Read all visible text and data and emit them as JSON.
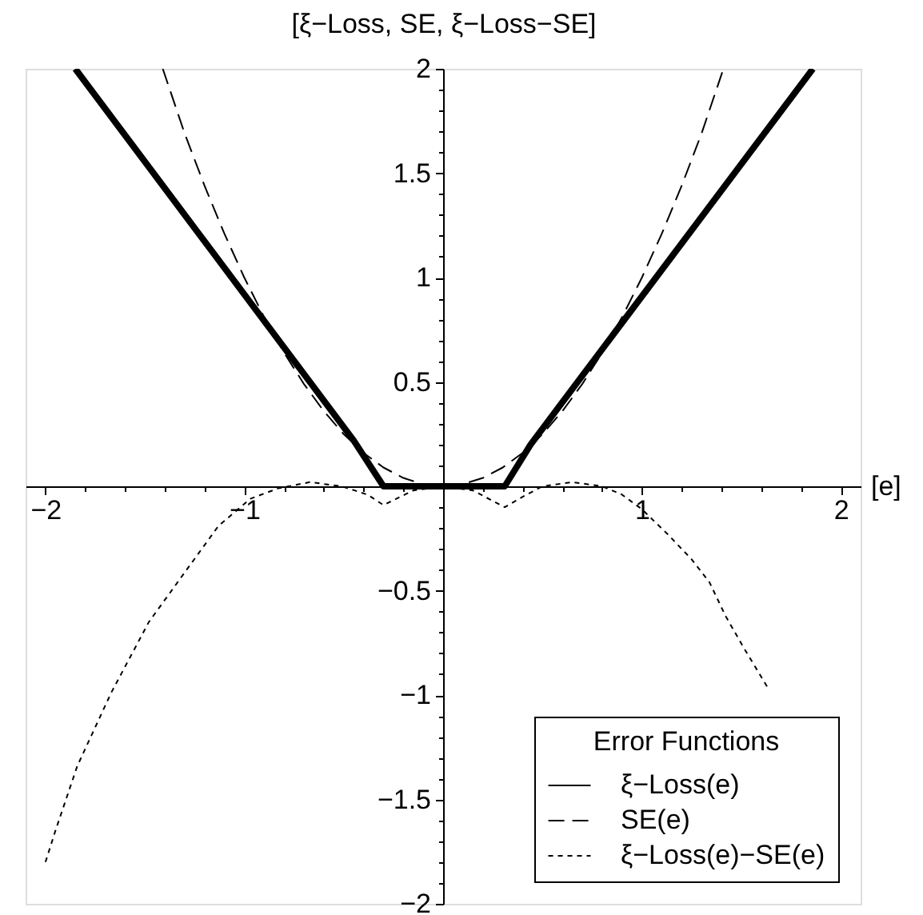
{
  "chart_data": {
    "type": "line",
    "ylabel": "[ξ−Loss, SE, ξ−Loss−SE]",
    "xlabel": "[e]",
    "legend_title": "Error Functions",
    "legend": "bottom right",
    "xlim": [
      -2.1,
      2.1
    ],
    "ylim": [
      -2,
      2
    ],
    "xticks": [
      {
        "value": -2,
        "label": "−2"
      },
      {
        "value": -1.8,
        "label": null
      },
      {
        "value": -1.6,
        "label": null
      },
      {
        "value": -1.4,
        "label": null
      },
      {
        "value": -1.2,
        "label": null
      },
      {
        "value": -1,
        "label": "−1"
      },
      {
        "value": -0.8,
        "label": null
      },
      {
        "value": -0.6,
        "label": null
      },
      {
        "value": -0.4,
        "label": null
      },
      {
        "value": -0.2,
        "label": null
      },
      {
        "value": 0.2,
        "label": null
      },
      {
        "value": 0.4,
        "label": null
      },
      {
        "value": 0.6,
        "label": null
      },
      {
        "value": 0.8,
        "label": null
      },
      1,
      {
        "value": 1.2,
        "label": null
      },
      {
        "value": 1.4,
        "label": null
      },
      {
        "value": 1.6,
        "label": null
      },
      {
        "value": 1.8,
        "label": null
      },
      2
    ],
    "yticks": [
      {
        "value": -2,
        "label": "−2"
      },
      {
        "value": -1.9,
        "label": null
      },
      {
        "value": -1.8,
        "label": null
      },
      {
        "value": -1.7,
        "label": null
      },
      {
        "value": -1.6,
        "label": null
      },
      {
        "value": -1.5,
        "label": "−1.5"
      },
      {
        "value": -1.4,
        "label": null
      },
      {
        "value": -1.3,
        "label": null
      },
      {
        "value": -1.2,
        "label": null
      },
      {
        "value": -1.1,
        "label": null
      },
      {
        "value": -1,
        "label": "−1"
      },
      {
        "value": -0.9,
        "label": null
      },
      {
        "value": -0.8,
        "label": null
      },
      {
        "value": -0.7,
        "label": null
      },
      {
        "value": -0.6,
        "label": null
      },
      {
        "value": -0.5,
        "label": "−0.5"
      },
      {
        "value": -0.4,
        "label": null
      },
      {
        "value": -0.3,
        "label": null
      },
      {
        "value": -0.2,
        "label": null
      },
      {
        "value": -0.1,
        "label": null
      },
      {
        "value": 0.1,
        "label": null
      },
      {
        "value": 0.2,
        "label": null
      },
      {
        "value": 0.3,
        "label": null
      },
      {
        "value": 0.4,
        "label": null
      },
      0.5,
      {
        "value": 0.6,
        "label": null
      },
      {
        "value": 0.7,
        "label": null
      },
      {
        "value": 0.8,
        "label": null
      },
      {
        "value": 0.9,
        "label": null
      },
      1,
      {
        "value": 1.1,
        "label": null
      },
      {
        "value": 1.2,
        "label": null
      },
      {
        "value": 1.3,
        "label": null
      },
      {
        "value": 1.4,
        "label": null
      },
      1.5,
      {
        "value": 1.6,
        "label": null
      },
      {
        "value": 1.7,
        "label": null
      },
      {
        "value": 1.8,
        "label": null
      },
      {
        "value": 1.9,
        "label": null
      },
      2
    ],
    "series": [
      {
        "name": "ξ−Loss(e)",
        "color": "#000000",
        "line_style": "solid",
        "x": [
          -1.85,
          -0.45,
          -0.3,
          0.31,
          0.44,
          1.86
        ],
        "values": [
          2.0,
          0.22,
          0.0,
          0.0,
          0.2,
          2.0
        ]
      },
      {
        "name": "SE(e)",
        "color": "#000000",
        "line_style": "dashed",
        "x": [
          -1.41,
          -1.3,
          -1.2,
          -1.1,
          -1.0,
          -0.9,
          -0.8,
          -0.7,
          -0.6,
          -0.5,
          -0.4,
          -0.3,
          -0.2,
          -0.1,
          0,
          0.1,
          0.2,
          0.3,
          0.4,
          0.5,
          0.6,
          0.7,
          0.8,
          0.9,
          1.0,
          1.1,
          1.2,
          1.3,
          1.41
        ],
        "values": [
          2.0,
          1.69,
          1.44,
          1.21,
          1.0,
          0.81,
          0.64,
          0.49,
          0.36,
          0.25,
          0.16,
          0.09,
          0.04,
          0.01,
          0.0,
          0.01,
          0.04,
          0.09,
          0.16,
          0.25,
          0.36,
          0.49,
          0.64,
          0.81,
          1.0,
          1.21,
          1.44,
          1.69,
          2.0
        ]
      },
      {
        "name": "ξ−Loss(e)−SE(e)",
        "color": "#000000",
        "line_style": "dotted",
        "x": [
          -2.0,
          -1.95,
          -1.84,
          -1.67,
          -1.48,
          -1.29,
          -1.13,
          -0.97,
          -0.83,
          -0.67,
          -0.51,
          -0.38,
          -0.3,
          -0.15,
          0,
          0.15,
          0.31,
          0.4,
          0.5,
          0.65,
          0.8,
          0.9,
          1.0,
          1.13,
          1.25,
          1.34,
          1.42,
          1.51,
          1.63
        ],
        "values": [
          -1.8,
          -1.65,
          -1.34,
          -0.99,
          -0.65,
          -0.4,
          -0.19,
          -0.06,
          -0.01,
          0.02,
          0.0,
          -0.04,
          -0.09,
          -0.02,
          0.0,
          -0.02,
          -0.1,
          -0.05,
          0.0,
          0.02,
          0.0,
          -0.04,
          -0.11,
          -0.23,
          -0.35,
          -0.46,
          -0.62,
          -0.77,
          -0.96
        ]
      }
    ]
  }
}
